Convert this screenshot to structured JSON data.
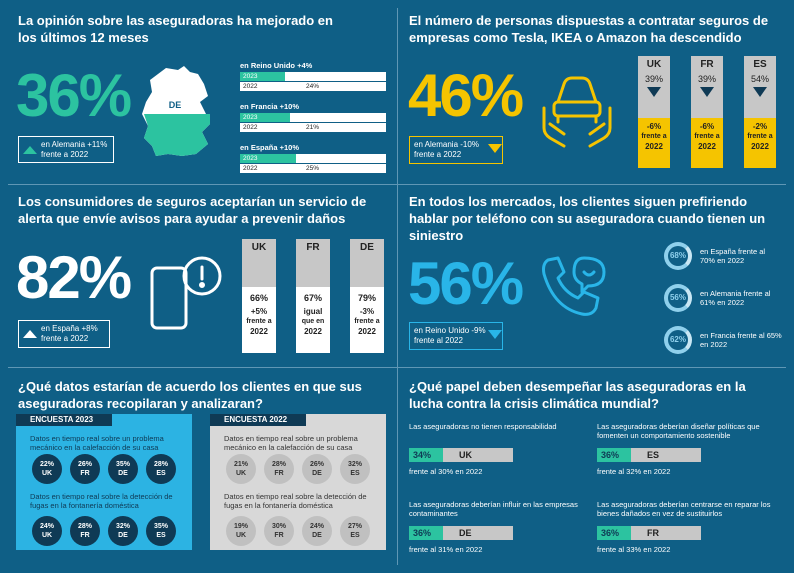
{
  "q1": {
    "title": "La opinión sobre las aseguradoras ha mejorado en los últimos 12 meses",
    "value": "36%",
    "note": "en Alemania +11% frente a 2022",
    "map_label": "DE",
    "countries": [
      {
        "name": "en Reino Unido +4%",
        "rows": [
          {
            "year": "2023",
            "value": "28%",
            "pct": 28
          },
          {
            "year": "2022",
            "value": "24%",
            "pct": 24
          }
        ]
      },
      {
        "name": "en Francia +10%",
        "rows": [
          {
            "year": "2023",
            "value": "31%",
            "pct": 31
          },
          {
            "year": "2022",
            "value": "21%",
            "pct": 21
          }
        ]
      },
      {
        "name": "en España +10%",
        "rows": [
          {
            "year": "2023",
            "value": "35%",
            "pct": 35
          },
          {
            "year": "2022",
            "value": "25%",
            "pct": 25
          }
        ]
      }
    ]
  },
  "q2": {
    "title": "El número de personas dispuestas a contratar seguros de empresas como Tesla, IKEA o Amazon ha descendido",
    "value": "46%",
    "note": "en Alemania -10% frente a 2022",
    "cols": [
      {
        "label": "UK",
        "pct": "39%",
        "change": "-6%",
        "sub": "frente a",
        "year": "2022"
      },
      {
        "label": "FR",
        "pct": "39%",
        "change": "-6%",
        "sub": "frente a",
        "year": "2022"
      },
      {
        "label": "ES",
        "pct": "54%",
        "change": "-2%",
        "sub": "frente a",
        "year": "2022"
      }
    ]
  },
  "q3": {
    "title": "Los consumidores de seguros aceptarían un servicio de alerta que envíe avisos para ayudar a prevenir daños",
    "value": "82%",
    "note": "en España +8% frente a 2022",
    "cols": [
      {
        "label": "UK",
        "pct": "66%",
        "l1": "+5%",
        "l2": "frente a",
        "l3": "2022"
      },
      {
        "label": "FR",
        "pct": "67%",
        "l1": "igual",
        "l2": "que en",
        "l3": "2022"
      },
      {
        "label": "DE",
        "pct": "79%",
        "l1": "-3%",
        "l2": "frente a",
        "l3": "2022"
      }
    ]
  },
  "q4": {
    "title": "En todos los mercados, los clientes siguen prefiriendo hablar por teléfono con su aseguradora cuando tienen un siniestro",
    "value": "56%",
    "note": "en Reino Unido -9% frente al 2022",
    "rings": [
      {
        "value": "68%",
        "text": "en España frente al 70% en 2022"
      },
      {
        "value": "56%",
        "text": "en Alemania frente al 61% en 2022"
      },
      {
        "value": "62%",
        "text": "en Francia frente al 65% en 2022"
      }
    ]
  },
  "q5": {
    "title": "¿Qué datos estarían de acuerdo los clientes en que sus aseguradoras recopilaran y analizaran?",
    "panels": [
      {
        "header": "ENCUESTA 2023",
        "g1": "Datos en tiempo real sobre un problema mecánico en la calefacción de su casa",
        "c1": [
          {
            "v": "22%",
            "c": "UK"
          },
          {
            "v": "26%",
            "c": "FR"
          },
          {
            "v": "35%",
            "c": "DE"
          },
          {
            "v": "28%",
            "c": "ES"
          }
        ],
        "g2": "Datos en tiempo real sobre la detección de fugas en la fontanería doméstica",
        "c2": [
          {
            "v": "24%",
            "c": "UK"
          },
          {
            "v": "28%",
            "c": "FR"
          },
          {
            "v": "32%",
            "c": "DE"
          },
          {
            "v": "35%",
            "c": "ES"
          }
        ]
      },
      {
        "header": "ENCUESTA 2022",
        "g1": "Datos en tiempo real sobre un problema mecánico en la calefacción de su casa",
        "c1": [
          {
            "v": "21%",
            "c": "UK"
          },
          {
            "v": "28%",
            "c": "FR"
          },
          {
            "v": "26%",
            "c": "DE"
          },
          {
            "v": "32%",
            "c": "ES"
          }
        ],
        "g2": "Datos en tiempo real sobre la detección de fugas en la fontanería doméstica",
        "c2": [
          {
            "v": "19%",
            "c": "UK"
          },
          {
            "v": "30%",
            "c": "FR"
          },
          {
            "v": "24%",
            "c": "DE"
          },
          {
            "v": "27%",
            "c": "ES"
          }
        ]
      }
    ]
  },
  "q6": {
    "title": "¿Qué papel deben desempeñar las aseguradoras en la lucha contra la crisis climática mundial?",
    "items": [
      {
        "text": "Las aseguradoras no tienen responsabilidad",
        "pct": "34%",
        "c": "UK",
        "foot": "frente al 30% en 2022"
      },
      {
        "text": "Las aseguradoras deberían diseñar políticas que fomenten un comportamiento sostenible",
        "pct": "36%",
        "c": "ES",
        "foot": "frente al 32% en 2022"
      },
      {
        "text": "Las aseguradoras deberían influir en las empresas contaminantes",
        "pct": "36%",
        "c": "DE",
        "foot": "frente al 31% en 2022"
      },
      {
        "text": "Las aseguradoras deberían centrarse en reparar los bienes dañados en vez de sustituirlos",
        "pct": "36%",
        "c": "FR",
        "foot": "frente al 33% en 2022"
      }
    ]
  }
}
